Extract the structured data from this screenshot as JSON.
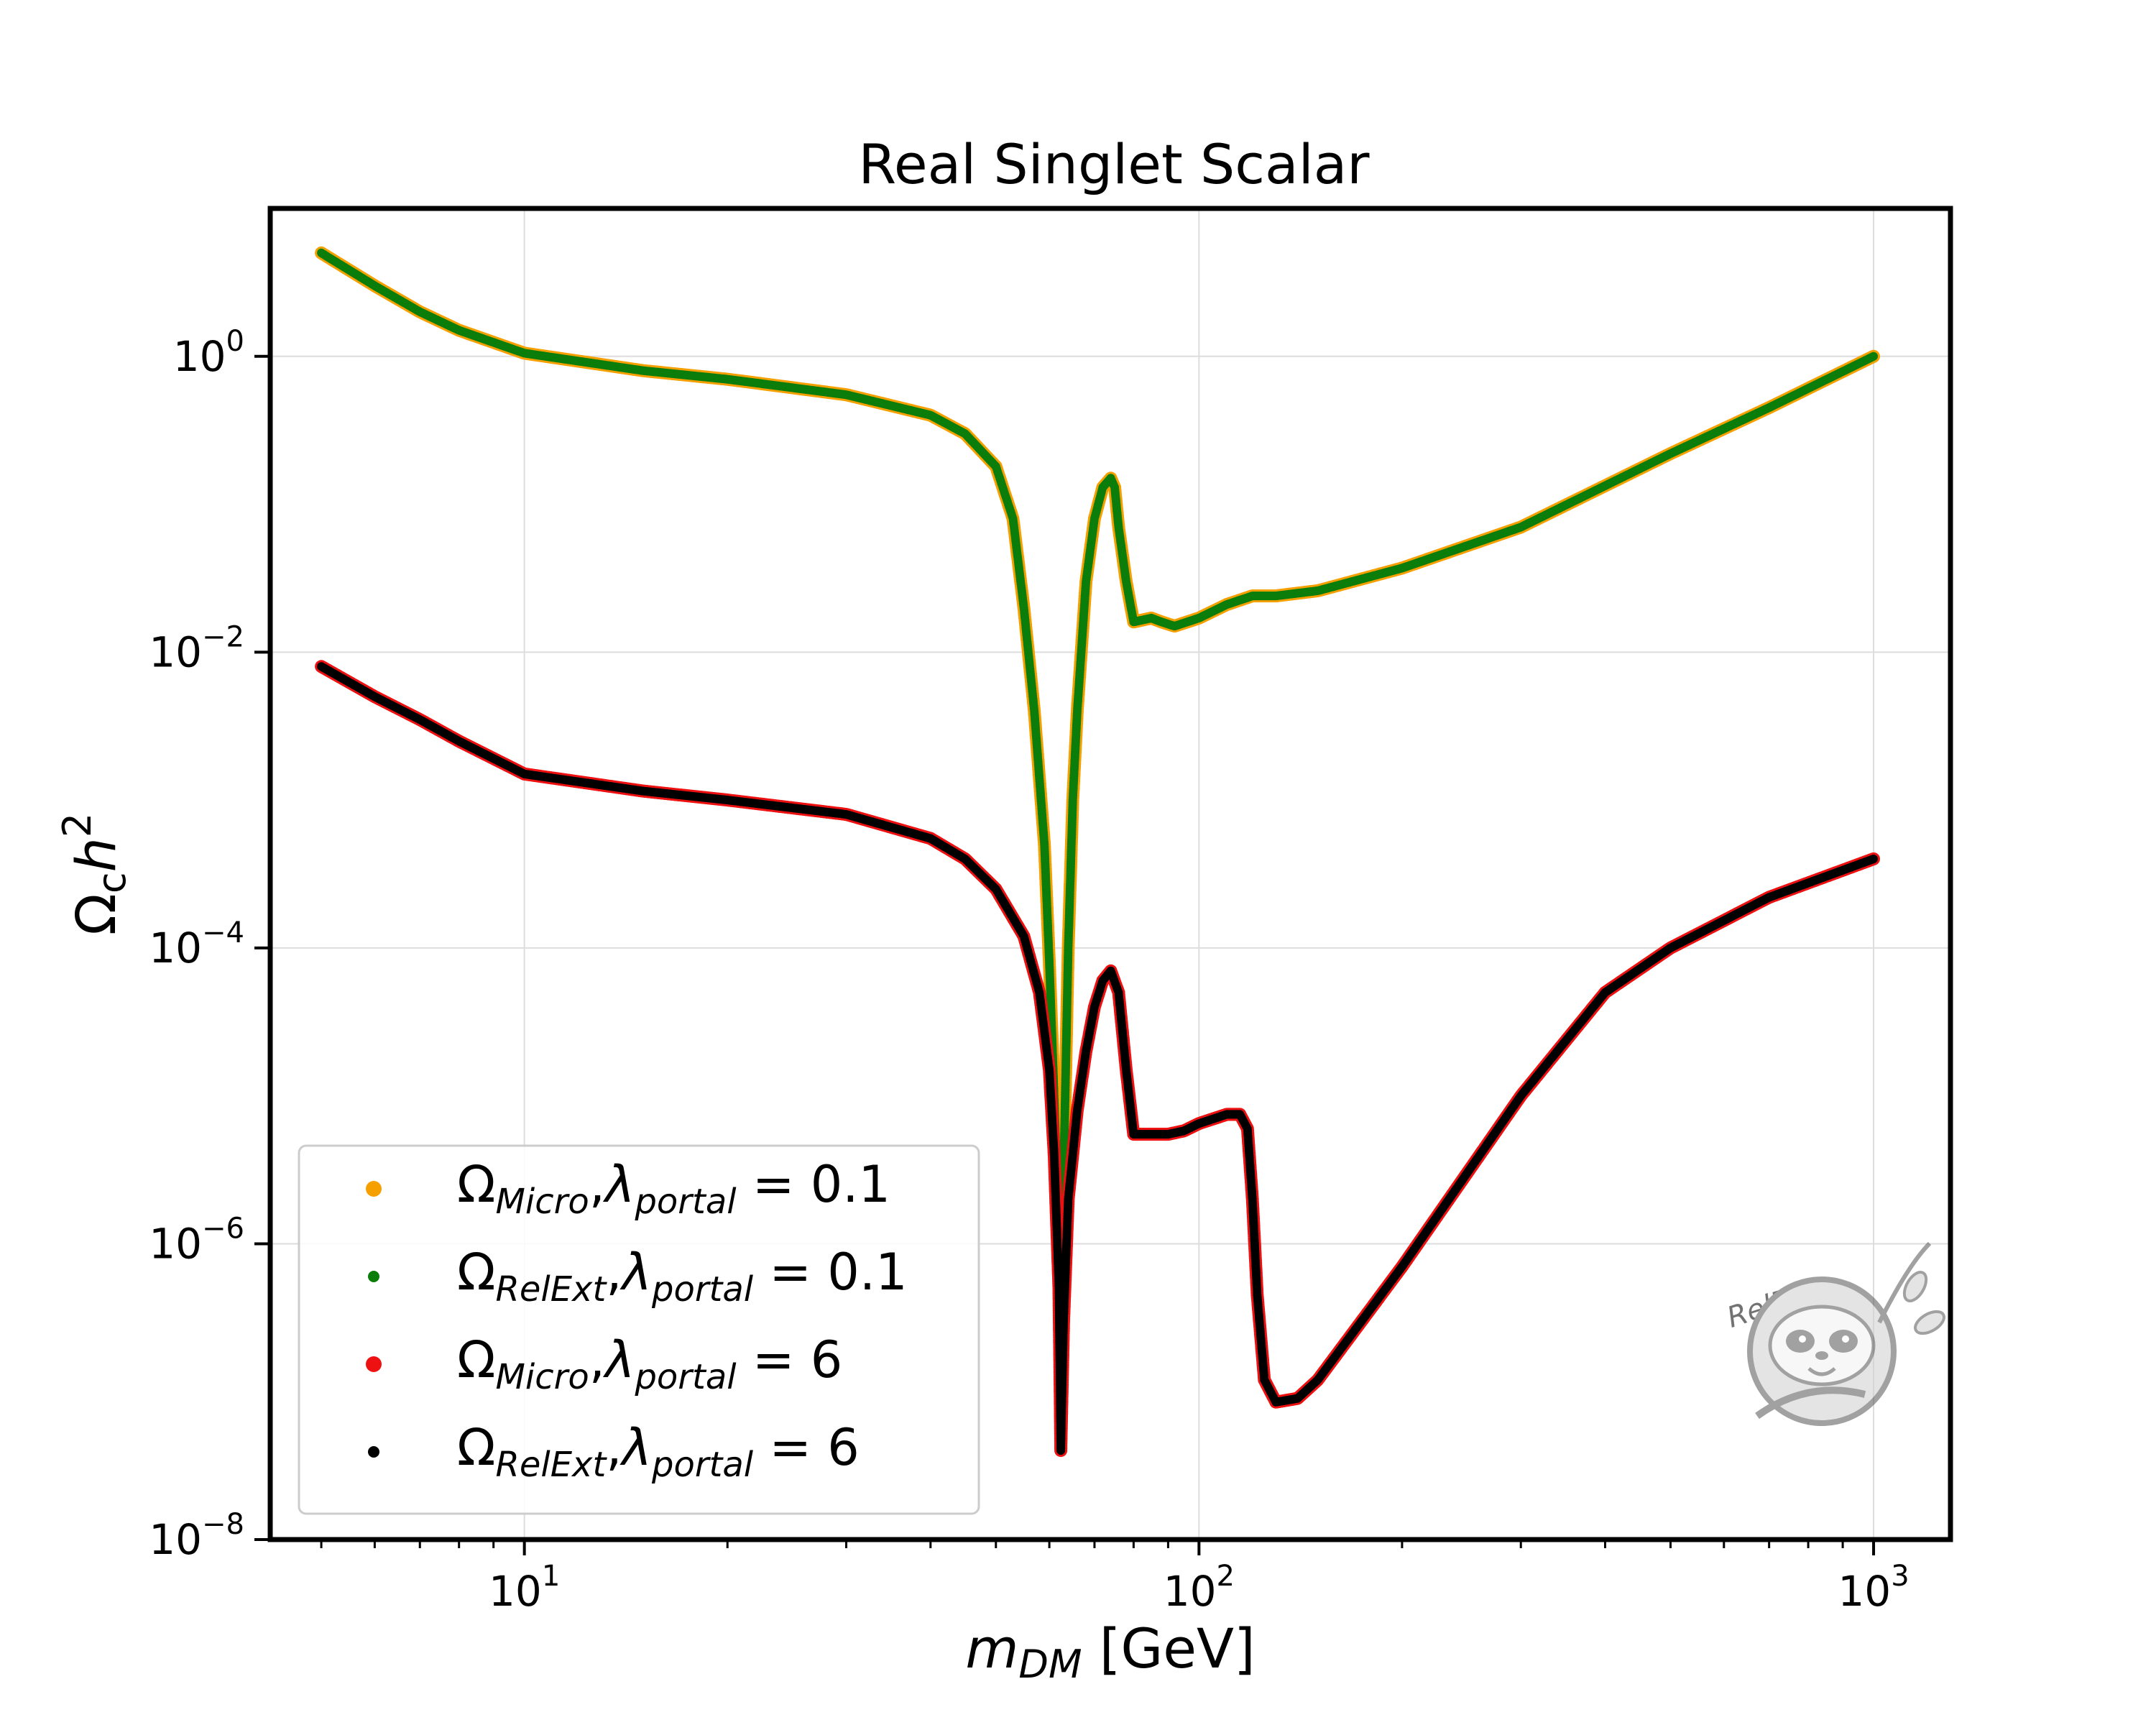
{
  "chart_data": {
    "type": "scatter",
    "title": "Real Singlet Scalar",
    "xlabel": {
      "base": "m",
      "sub": "DM",
      "unit": " [GeV]"
    },
    "ylabel": {
      "base": "Ω",
      "sub": "c",
      "mid": "h",
      "sup": "2"
    },
    "x_scale": "log",
    "y_scale": "log",
    "xlim": [
      4.2,
      1300
    ],
    "ylim": [
      1e-08,
      10
    ],
    "grid": true,
    "legend_position": "lower-left",
    "x_ticks": [
      {
        "value": 10,
        "base": "10",
        "exp": "1"
      },
      {
        "value": 100,
        "base": "10",
        "exp": "2"
      },
      {
        "value": 1000,
        "base": "10",
        "exp": "3"
      }
    ],
    "y_ticks": [
      {
        "value": 1,
        "base": "10",
        "exp": "0"
      },
      {
        "value": 0.01,
        "base": "10",
        "exp": "−2"
      },
      {
        "value": 0.0001,
        "base": "10",
        "exp": "−4"
      },
      {
        "value": 1e-06,
        "base": "10",
        "exp": "−6"
      },
      {
        "value": 1e-08,
        "base": "10",
        "exp": "−8"
      }
    ],
    "series": [
      {
        "legend": {
          "omega": "Ω",
          "omega_sub": "Micro",
          "lambda": "λ",
          "lambda_sub": "portal",
          "value": "0.1"
        },
        "color": "#f5a000",
        "marker_radius": 9,
        "curve": "low"
      },
      {
        "legend": {
          "omega": "Ω",
          "omega_sub": "RelExt",
          "lambda": "λ",
          "lambda_sub": "portal",
          "value": "0.1"
        },
        "color": "#0b7d0b",
        "marker_radius": 6,
        "curve": "low"
      },
      {
        "legend": {
          "omega": "Ω",
          "omega_sub": "Micro",
          "lambda": "λ",
          "lambda_sub": "portal",
          "value": "6"
        },
        "color": "#ee1111",
        "marker_radius": 9,
        "curve": "high"
      },
      {
        "legend": {
          "omega": "Ω",
          "omega_sub": "RelExt",
          "lambda": "λ",
          "lambda_sub": "portal",
          "value": "6"
        },
        "color": "#000000",
        "marker_radius": 6,
        "curve": "high"
      }
    ],
    "curves": {
      "low": [
        [
          5,
          5
        ],
        [
          6,
          3
        ],
        [
          7,
          2
        ],
        [
          8,
          1.5
        ],
        [
          10,
          1.05
        ],
        [
          15,
          0.8
        ],
        [
          20,
          0.7
        ],
        [
          30,
          0.55
        ],
        [
          40,
          0.4
        ],
        [
          45,
          0.3
        ],
        [
          50,
          0.18
        ],
        [
          53,
          0.08
        ],
        [
          55,
          0.02
        ],
        [
          57,
          0.004
        ],
        [
          59,
          0.0005
        ],
        [
          60,
          8e-05
        ],
        [
          61,
          1e-05
        ],
        [
          62,
          1e-06
        ],
        [
          62.4,
          4e-07
        ],
        [
          63,
          3e-06
        ],
        [
          64,
          0.0001
        ],
        [
          65,
          0.001
        ],
        [
          66,
          0.004
        ],
        [
          68,
          0.03
        ],
        [
          70,
          0.08
        ],
        [
          72,
          0.13
        ],
        [
          74,
          0.15
        ],
        [
          75,
          0.13
        ],
        [
          76,
          0.07
        ],
        [
          78,
          0.03
        ],
        [
          80,
          0.016
        ],
        [
          85,
          0.017
        ],
        [
          88,
          0.016
        ],
        [
          92,
          0.015
        ],
        [
          100,
          0.017
        ],
        [
          110,
          0.021
        ],
        [
          120,
          0.024
        ],
        [
          130,
          0.024
        ],
        [
          150,
          0.026
        ],
        [
          200,
          0.037
        ],
        [
          300,
          0.07
        ],
        [
          500,
          0.22
        ],
        [
          700,
          0.45
        ],
        [
          1000,
          1.0
        ]
      ],
      "high": [
        [
          5,
          0.008
        ],
        [
          6,
          0.005
        ],
        [
          7,
          0.0035
        ],
        [
          8,
          0.0025
        ],
        [
          10,
          0.0015
        ],
        [
          15,
          0.00115
        ],
        [
          20,
          0.001
        ],
        [
          30,
          0.0008
        ],
        [
          40,
          0.00055
        ],
        [
          45,
          0.0004
        ],
        [
          50,
          0.00025
        ],
        [
          55,
          0.00012
        ],
        [
          58,
          5e-05
        ],
        [
          60,
          1.5e-05
        ],
        [
          61,
          4e-06
        ],
        [
          62,
          5e-07
        ],
        [
          62.4,
          4e-08
        ],
        [
          63,
          3e-07
        ],
        [
          64,
          2e-06
        ],
        [
          66,
          8e-06
        ],
        [
          68,
          2e-05
        ],
        [
          70,
          4e-05
        ],
        [
          72,
          6e-05
        ],
        [
          74,
          7e-05
        ],
        [
          76,
          5e-05
        ],
        [
          78,
          1.5e-05
        ],
        [
          80,
          5.5e-06
        ],
        [
          85,
          5.5e-06
        ],
        [
          90,
          5.5e-06
        ],
        [
          95,
          5.8e-06
        ],
        [
          100,
          6.5e-06
        ],
        [
          110,
          7.5e-06
        ],
        [
          115,
          7.5e-06
        ],
        [
          118,
          6e-06
        ],
        [
          120,
          2e-06
        ],
        [
          122,
          4.5e-07
        ],
        [
          125,
          1.2e-07
        ],
        [
          130,
          8.5e-08
        ],
        [
          140,
          9e-08
        ],
        [
          150,
          1.2e-07
        ],
        [
          200,
          7e-07
        ],
        [
          300,
          1e-05
        ],
        [
          400,
          5e-05
        ],
        [
          500,
          0.0001
        ],
        [
          700,
          0.00022
        ],
        [
          1000,
          0.0004
        ]
      ]
    }
  },
  "watermark": {
    "text": "RelExt",
    "icon": "sloth-logo"
  }
}
